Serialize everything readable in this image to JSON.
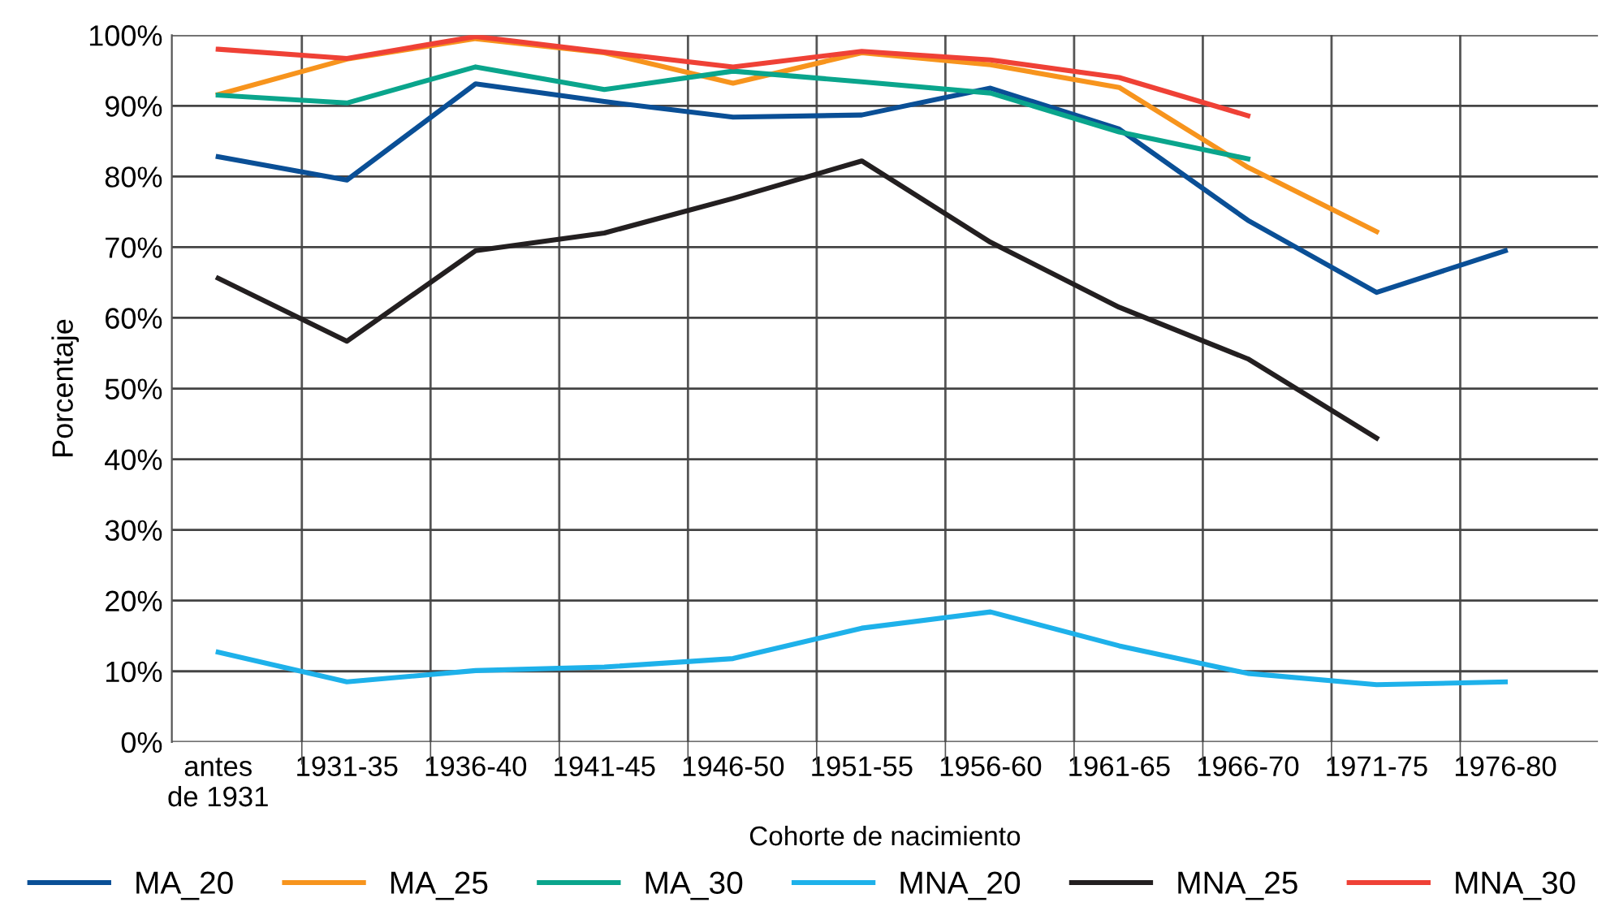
{
  "chart_data": {
    "type": "line",
    "xlabel": "Cohorte de nacimiento",
    "ylabel": "Porcentaje",
    "categories": [
      "antes\nde 1931",
      "1931-35",
      "1936-40",
      "1941-45",
      "1946-50",
      "1951-55",
      "1956-60",
      "1961-65",
      "1966-70",
      "1971-75",
      "1976-80"
    ],
    "ylim": [
      0,
      100
    ],
    "yticks": [
      {
        "value": 0,
        "label": "0%"
      },
      {
        "value": 10,
        "label": "10%"
      },
      {
        "value": 20,
        "label": "20%"
      },
      {
        "value": 30,
        "label": "30%"
      },
      {
        "value": 40,
        "label": "40%"
      },
      {
        "value": 50,
        "label": "50%"
      },
      {
        "value": 60,
        "label": "60%"
      },
      {
        "value": 70,
        "label": "70%"
      },
      {
        "value": 80,
        "label": "80%"
      },
      {
        "value": 90,
        "label": "90%"
      },
      {
        "value": 100,
        "label": "100%"
      }
    ],
    "grid": true,
    "legend": "bottom",
    "marker": "none",
    "line_style": "solid",
    "series": [
      {
        "name": "MA_20",
        "color": "#0a4f96",
        "values": [
          82.8,
          79.5,
          93.1,
          90.6,
          88.4,
          88.7,
          92.5,
          86.7,
          73.8,
          63.6,
          69.5
        ]
      },
      {
        "name": "MA_25",
        "color": "#f7941d",
        "values": [
          91.6,
          96.6,
          99.5,
          97.5,
          93.2,
          97.5,
          95.8,
          92.6,
          81.3,
          72.2,
          null
        ]
      },
      {
        "name": "MA_30",
        "color": "#0aa58c",
        "values": [
          91.5,
          90.4,
          95.5,
          92.3,
          94.9,
          93.4,
          91.8,
          86.3,
          82.5,
          null,
          null
        ]
      },
      {
        "name": "MNA_20",
        "color": "#1eb1ea",
        "values": [
          12.7,
          8.5,
          10.1,
          10.6,
          11.8,
          16.1,
          18.4,
          13.6,
          9.7,
          8.1,
          8.5
        ]
      },
      {
        "name": "MNA_25",
        "color": "#231f20",
        "values": [
          65.6,
          56.7,
          69.5,
          72.0,
          76.9,
          82.2,
          70.7,
          61.5,
          54.2,
          43.0,
          null
        ]
      },
      {
        "name": "MNA_30",
        "color": "#ef4136",
        "values": [
          98.0,
          96.7,
          99.8,
          97.6,
          95.5,
          97.7,
          96.5,
          94.0,
          88.6,
          null,
          null
        ]
      }
    ]
  }
}
